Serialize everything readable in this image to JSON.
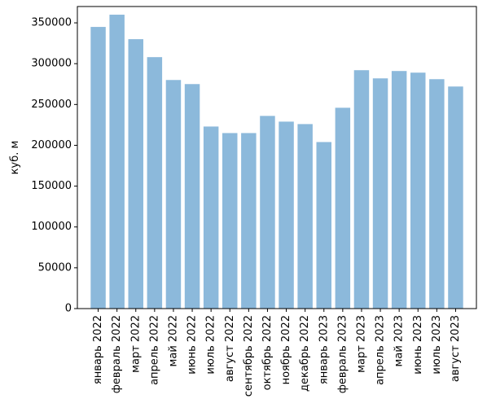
{
  "chart_data": {
    "type": "bar",
    "title": "",
    "xlabel": "",
    "ylabel": "куб. м",
    "ylim": [
      0,
      370000
    ],
    "yticks": [
      0,
      50000,
      100000,
      150000,
      200000,
      250000,
      300000,
      350000
    ],
    "grid": false,
    "bar_color": "#8cb9db",
    "categories": [
      "январь 2022",
      "февраль 2022",
      "март 2022",
      "апрель 2022",
      "май 2022",
      "июнь 2022",
      "июль 2022",
      "август 2022",
      "сентябрь 2022",
      "октябрь 2022",
      "ноябрь 2022",
      "декабрь 2022",
      "январь 2023",
      "февраль 2023",
      "март 2023",
      "апрель 2023",
      "май 2023",
      "июнь 2023",
      "июль 2023",
      "август 2023"
    ],
    "values": [
      345000,
      360000,
      330000,
      308000,
      280000,
      275000,
      223000,
      215000,
      215000,
      236000,
      229000,
      226000,
      204000,
      246000,
      292000,
      282000,
      291000,
      289000,
      281000,
      272000
    ]
  }
}
